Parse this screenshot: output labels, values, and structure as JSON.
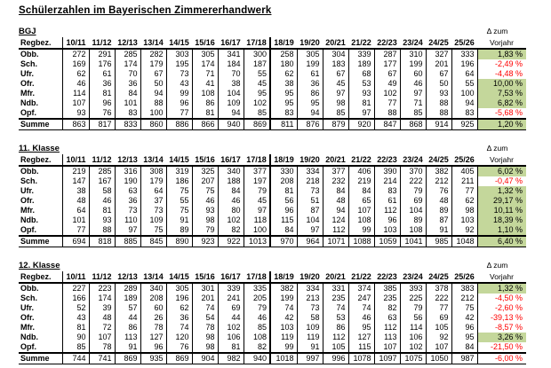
{
  "title": "Schülerzahlen im Bayerischen Zimmererhandwerk",
  "colors": {
    "positive_bg": "#c4d79b",
    "negative_text": "#ff0000"
  },
  "columns": {
    "region_header": "Regbez.",
    "years": [
      "10/11",
      "11/12",
      "12/13",
      "13/14",
      "14/15",
      "15/16",
      "16/17",
      "17/18",
      "18/19",
      "19/20",
      "20/21",
      "21/22",
      "22/23",
      "23/24",
      "24/25",
      "25/26"
    ],
    "delta_header_line1": "Δ zum",
    "delta_header_line2": "Vorjahr"
  },
  "sections": [
    {
      "label": "BGJ",
      "rows": [
        {
          "region": "Obb.",
          "values": [
            272,
            291,
            285,
            282,
            303,
            305,
            341,
            300,
            258,
            305,
            304,
            339,
            287,
            310,
            327,
            333
          ],
          "delta": "1,83 %",
          "trend": "positive"
        },
        {
          "region": "Sch.",
          "values": [
            169,
            176,
            174,
            179,
            195,
            174,
            184,
            187,
            180,
            199,
            183,
            189,
            177,
            199,
            201,
            196
          ],
          "delta": "-2,49 %",
          "trend": "negative"
        },
        {
          "region": "Ufr.",
          "values": [
            62,
            61,
            70,
            67,
            73,
            71,
            70,
            55,
            62,
            61,
            67,
            68,
            67,
            60,
            67,
            64
          ],
          "delta": "-4,48 %",
          "trend": "negative"
        },
        {
          "region": "Ofr.",
          "values": [
            46,
            36,
            36,
            50,
            43,
            41,
            38,
            45,
            38,
            36,
            45,
            53,
            49,
            46,
            50,
            55
          ],
          "delta": "10,00 %",
          "trend": "positive"
        },
        {
          "region": "Mfr.",
          "values": [
            114,
            81,
            84,
            94,
            99,
            108,
            104,
            95,
            95,
            86,
            97,
            93,
            102,
            97,
            93,
            100
          ],
          "delta": "7,53 %",
          "trend": "positive"
        },
        {
          "region": "Ndb.",
          "values": [
            107,
            96,
            101,
            88,
            96,
            86,
            109,
            102,
            95,
            95,
            98,
            81,
            77,
            71,
            88,
            94
          ],
          "delta": "6,82 %",
          "trend": "positive"
        },
        {
          "region": "Opf.",
          "values": [
            93,
            76,
            83,
            100,
            77,
            81,
            94,
            85,
            83,
            94,
            85,
            97,
            88,
            85,
            88,
            83
          ],
          "delta": "-5,68 %",
          "trend": "negative"
        },
        {
          "region": "Summe",
          "values": [
            863,
            817,
            833,
            860,
            886,
            866,
            940,
            869,
            811,
            876,
            879,
            920,
            847,
            868,
            914,
            925
          ],
          "delta": "1,20 %",
          "trend": "positive",
          "is_sum": true
        }
      ]
    },
    {
      "label": "11. Klasse",
      "rows": [
        {
          "region": "Obb.",
          "values": [
            219,
            285,
            316,
            308,
            319,
            325,
            340,
            377,
            330,
            334,
            377,
            406,
            390,
            370,
            382,
            405
          ],
          "delta": "6,02 %",
          "trend": "positive"
        },
        {
          "region": "Sch.",
          "values": [
            147,
            167,
            190,
            179,
            186,
            207,
            188,
            197,
            208,
            218,
            232,
            219,
            214,
            222,
            212,
            211
          ],
          "delta": "-0,47 %",
          "trend": "negative"
        },
        {
          "region": "Ufr.",
          "values": [
            38,
            58,
            63,
            64,
            75,
            75,
            84,
            79,
            81,
            73,
            84,
            84,
            83,
            79,
            76,
            77
          ],
          "delta": "1,32 %",
          "trend": "positive"
        },
        {
          "region": "Ofr.",
          "values": [
            48,
            46,
            36,
            37,
            55,
            46,
            46,
            45,
            56,
            51,
            48,
            65,
            61,
            69,
            48,
            62
          ],
          "delta": "29,17 %",
          "trend": "positive"
        },
        {
          "region": "Mfr.",
          "values": [
            64,
            81,
            73,
            73,
            75,
            93,
            80,
            97,
            96,
            87,
            94,
            107,
            112,
            104,
            89,
            98
          ],
          "delta": "10,11 %",
          "trend": "positive"
        },
        {
          "region": "Ndb.",
          "values": [
            101,
            93,
            110,
            109,
            91,
            98,
            102,
            118,
            115,
            104,
            124,
            108,
            96,
            89,
            87,
            103
          ],
          "delta": "18,39 %",
          "trend": "positive"
        },
        {
          "region": "Opf.",
          "values": [
            77,
            88,
            97,
            75,
            89,
            79,
            82,
            100,
            84,
            97,
            112,
            99,
            103,
            108,
            91,
            92
          ],
          "delta": "1,10 %",
          "trend": "positive"
        },
        {
          "region": "Summe",
          "values": [
            694,
            818,
            885,
            845,
            890,
            923,
            922,
            1013,
            970,
            964,
            1071,
            1088,
            1059,
            1041,
            985,
            1048
          ],
          "delta": "6,40 %",
          "trend": "positive",
          "is_sum": true
        }
      ]
    },
    {
      "label": "12. Klasse",
      "rows": [
        {
          "region": "Obb.",
          "values": [
            227,
            223,
            289,
            340,
            305,
            301,
            339,
            335,
            382,
            334,
            331,
            374,
            385,
            393,
            378,
            383
          ],
          "delta": "1,32 %",
          "trend": "positive"
        },
        {
          "region": "Sch.",
          "values": [
            166,
            174,
            189,
            208,
            196,
            201,
            241,
            205,
            199,
            213,
            235,
            247,
            235,
            225,
            222,
            212
          ],
          "delta": "-4,50 %",
          "trend": "negative"
        },
        {
          "region": "Ufr.",
          "values": [
            52,
            39,
            57,
            60,
            62,
            74,
            69,
            79,
            74,
            73,
            74,
            74,
            82,
            79,
            77,
            75
          ],
          "delta": "-2,60 %",
          "trend": "negative"
        },
        {
          "region": "Ofr.",
          "values": [
            43,
            48,
            44,
            26,
            36,
            54,
            44,
            46,
            42,
            58,
            53,
            46,
            63,
            56,
            69,
            42
          ],
          "delta": "-39,13 %",
          "trend": "negative"
        },
        {
          "region": "Mfr.",
          "values": [
            81,
            72,
            86,
            78,
            74,
            78,
            102,
            85,
            103,
            109,
            86,
            95,
            112,
            114,
            105,
            96
          ],
          "delta": "-8,57 %",
          "trend": "negative"
        },
        {
          "region": "Ndb.",
          "values": [
            90,
            107,
            113,
            127,
            120,
            98,
            106,
            108,
            119,
            119,
            112,
            127,
            113,
            106,
            92,
            95
          ],
          "delta": "3,26 %",
          "trend": "positive"
        },
        {
          "region": "Opf.",
          "values": [
            85,
            78,
            91,
            96,
            76,
            98,
            81,
            82,
            99,
            91,
            105,
            115,
            107,
            102,
            107,
            84
          ],
          "delta": "-21,50 %",
          "trend": "negative"
        },
        {
          "region": "Summe",
          "values": [
            744,
            741,
            869,
            935,
            869,
            904,
            982,
            940,
            1018,
            997,
            996,
            1078,
            1097,
            1075,
            1050,
            987
          ],
          "delta": "-6,00 %",
          "trend": "negative",
          "is_sum": true
        }
      ]
    }
  ]
}
